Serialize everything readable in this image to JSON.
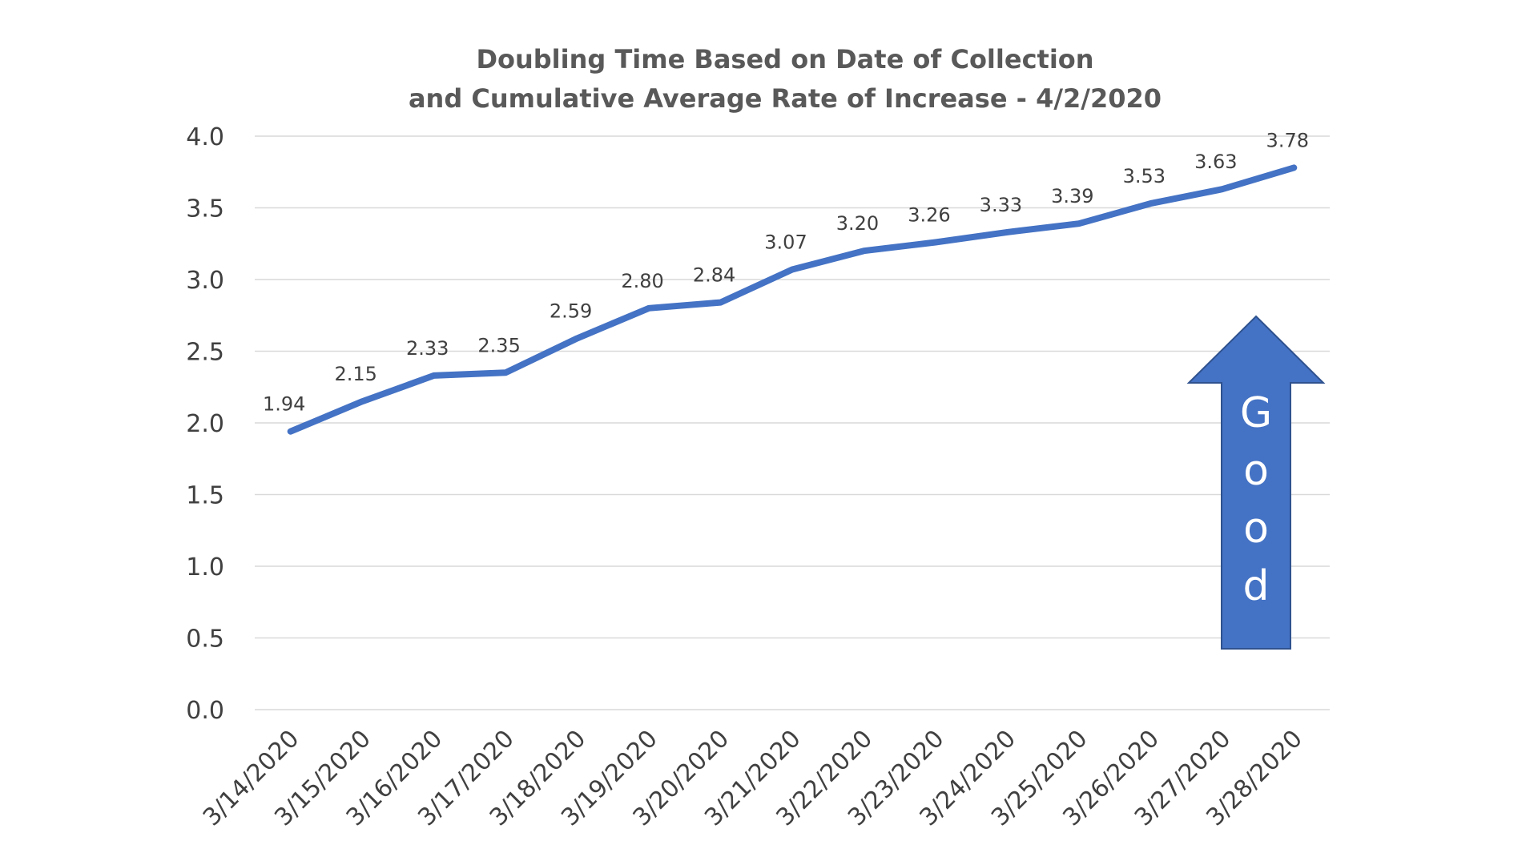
{
  "chart_data": {
    "type": "line",
    "title": "Doubling Time Based on Date of Collection",
    "subtitle": "and Cumulative Average Rate of Increase  - 4/2/2020",
    "xlabel": "",
    "ylabel": "",
    "categories": [
      "3/14/2020",
      "3/15/2020",
      "3/16/2020",
      "3/17/2020",
      "3/18/2020",
      "3/19/2020",
      "3/20/2020",
      "3/21/2020",
      "3/22/2020",
      "3/23/2020",
      "3/24/2020",
      "3/25/2020",
      "3/26/2020",
      "3/27/2020",
      "3/28/2020"
    ],
    "series": [
      {
        "values": [
          1.94,
          2.15,
          2.33,
          2.35,
          2.59,
          2.8,
          2.84,
          3.07,
          3.2,
          3.26,
          3.33,
          3.39,
          3.53,
          3.63,
          3.78
        ],
        "labels": [
          "1.94",
          "2.15",
          "2.33",
          "2.35",
          "2.59",
          "2.80",
          "2.84",
          "3.07",
          "3.20",
          "3.26",
          "3.33",
          "3.39",
          "3.53",
          "3.63",
          "3.78"
        ],
        "color": "#4472c4"
      }
    ],
    "ylim": [
      0,
      4.0
    ],
    "yticks": [
      "0.0",
      "0.5",
      "1.0",
      "1.5",
      "2.0",
      "2.5",
      "3.0",
      "3.5",
      "4.0"
    ],
    "grid": true,
    "legend": "none",
    "annotation": {
      "text": "Good",
      "shape": "up-arrow",
      "color": "#4472c4"
    }
  }
}
